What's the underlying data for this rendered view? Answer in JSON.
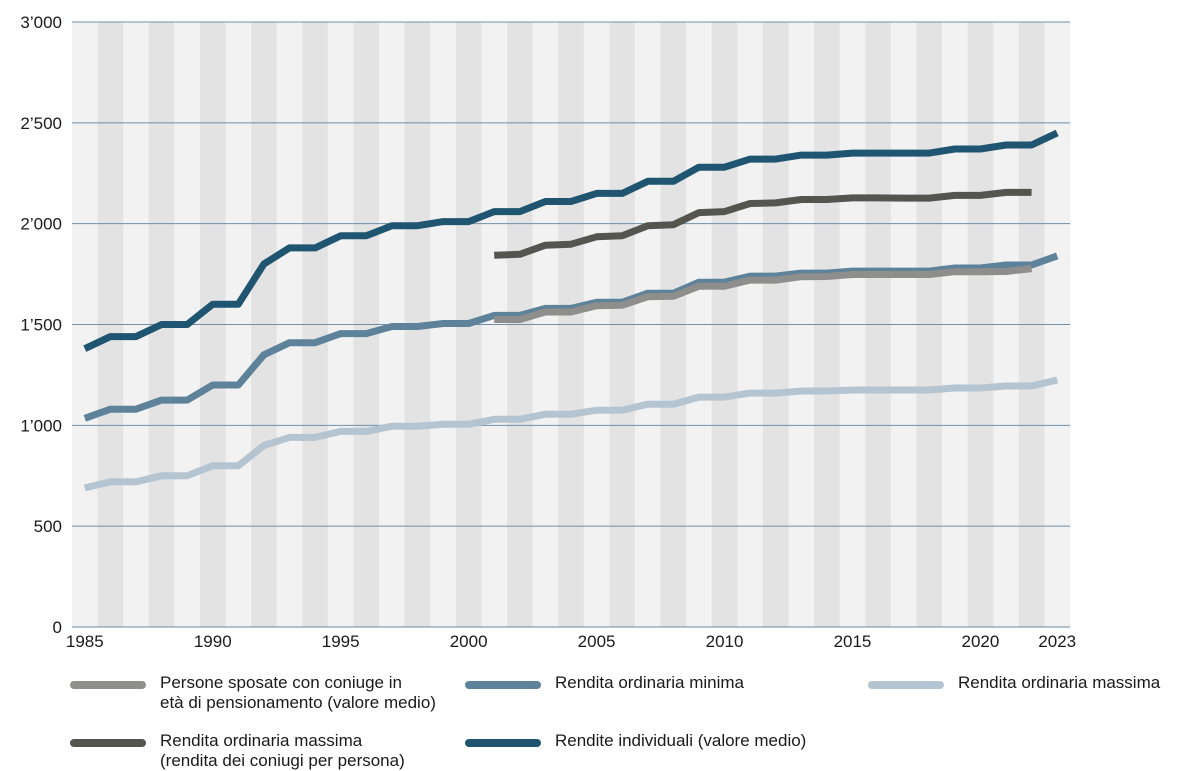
{
  "chart_data": {
    "type": "line",
    "title": "",
    "xlabel": "",
    "ylabel": "",
    "x_range": [
      1985,
      2023
    ],
    "ylim": [
      0,
      3000
    ],
    "x_tick_labels": [
      "1985",
      "1990",
      "1995",
      "2000",
      "2005",
      "2010",
      "2015",
      "2020",
      "2023"
    ],
    "y_tick_labels": [
      "0",
      "500",
      "1’000",
      "1’500",
      "2’000",
      "2’500",
      "3’000"
    ],
    "grid": "horizontal",
    "background": "alternating vertical year bands",
    "legend_position": "bottom",
    "series": [
      {
        "name": "Rendita ordinaria massima",
        "color": "#b4c4d1",
        "x": [
          1985,
          1986,
          1987,
          1988,
          1989,
          1990,
          1991,
          1992,
          1993,
          1994,
          1995,
          1996,
          1997,
          1998,
          1999,
          2000,
          2001,
          2002,
          2003,
          2004,
          2005,
          2006,
          2007,
          2008,
          2009,
          2010,
          2011,
          2012,
          2013,
          2014,
          2015,
          2016,
          2017,
          2018,
          2019,
          2020,
          2021,
          2022,
          2023
        ],
        "y": [
          690,
          720,
          720,
          750,
          750,
          800,
          800,
          900,
          940,
          940,
          970,
          970,
          995,
          995,
          1005,
          1005,
          1030,
          1030,
          1055,
          1055,
          1075,
          1075,
          1105,
          1105,
          1140,
          1140,
          1160,
          1160,
          1170,
          1170,
          1175,
          1175,
          1175,
          1175,
          1185,
          1185,
          1195,
          1195,
          1225
        ]
      },
      {
        "name": "Rendita ordinaria minima",
        "color": "#5d8299",
        "x": [
          1985,
          1986,
          1987,
          1988,
          1989,
          1990,
          1991,
          1992,
          1993,
          1994,
          1995,
          1996,
          1997,
          1998,
          1999,
          2000,
          2001,
          2002,
          2003,
          2004,
          2005,
          2006,
          2007,
          2008,
          2009,
          2010,
          2011,
          2012,
          2013,
          2014,
          2015,
          2016,
          2017,
          2018,
          2019,
          2020,
          2021,
          2022,
          2023
        ],
        "y": [
          1035,
          1080,
          1080,
          1125,
          1125,
          1200,
          1200,
          1350,
          1410,
          1410,
          1455,
          1455,
          1490,
          1490,
          1505,
          1505,
          1545,
          1545,
          1580,
          1580,
          1610,
          1610,
          1655,
          1655,
          1710,
          1710,
          1740,
          1740,
          1755,
          1755,
          1765,
          1765,
          1765,
          1765,
          1780,
          1780,
          1795,
          1795,
          1840
        ]
      },
      {
        "name": "Persone sposate con coniuge in età di pensionamento (valore medio)",
        "color": "#8e8e8c",
        "x": [
          2001,
          2002,
          2003,
          2004,
          2005,
          2006,
          2007,
          2008,
          2009,
          2010,
          2011,
          2012,
          2013,
          2014,
          2015,
          2016,
          2017,
          2018,
          2019,
          2020,
          2021,
          2022
        ],
        "y": [
          1525,
          1525,
          1562,
          1562,
          1593,
          1595,
          1638,
          1640,
          1690,
          1690,
          1720,
          1720,
          1737,
          1738,
          1748,
          1748,
          1748,
          1748,
          1762,
          1762,
          1763,
          1777
        ]
      },
      {
        "name": "Rendita ordinaria massima (rendita dei coniugi per persona)",
        "color": "#555550",
        "x": [
          2001,
          2002,
          2003,
          2004,
          2005,
          2006,
          2007,
          2008,
          2009,
          2010,
          2011,
          2012,
          2013,
          2014,
          2015,
          2016,
          2017,
          2018,
          2019,
          2020,
          2021,
          2022
        ],
        "y": [
          1843,
          1848,
          1893,
          1898,
          1935,
          1940,
          1990,
          1995,
          2055,
          2060,
          2100,
          2103,
          2120,
          2120,
          2128,
          2128,
          2127,
          2127,
          2140,
          2140,
          2155,
          2155
        ]
      },
      {
        "name": "Rendite individuali (valore medio)",
        "color": "#1f5570",
        "x": [
          1985,
          1986,
          1987,
          1988,
          1989,
          1990,
          1991,
          1992,
          1993,
          1994,
          1995,
          1996,
          1997,
          1998,
          1999,
          2000,
          2001,
          2002,
          2003,
          2004,
          2005,
          2006,
          2007,
          2008,
          2009,
          2010,
          2011,
          2012,
          2013,
          2014,
          2015,
          2016,
          2017,
          2018,
          2019,
          2020,
          2021,
          2022,
          2023
        ],
        "y": [
          1380,
          1440,
          1440,
          1500,
          1500,
          1600,
          1600,
          1800,
          1880,
          1880,
          1940,
          1940,
          1990,
          1990,
          2010,
          2010,
          2060,
          2060,
          2110,
          2110,
          2150,
          2150,
          2210,
          2210,
          2280,
          2280,
          2320,
          2320,
          2340,
          2340,
          2350,
          2350,
          2350,
          2350,
          2370,
          2370,
          2390,
          2390,
          2450
        ]
      }
    ],
    "legend": [
      {
        "label": "Persone sposate con coniuge in\netà di pensionamento (valore medio)",
        "color": "#8e8e8c"
      },
      {
        "label": "Rendita ordinaria minima",
        "color": "#5d8299"
      },
      {
        "label": "Rendita ordinaria massima",
        "color": "#b4c4d1"
      },
      {
        "label": "Rendita ordinaria massima\n(rendita dei coniugi per persona)",
        "color": "#555550"
      },
      {
        "label": "Rendite individuali (valore medio)",
        "color": "#1f5570"
      }
    ]
  }
}
